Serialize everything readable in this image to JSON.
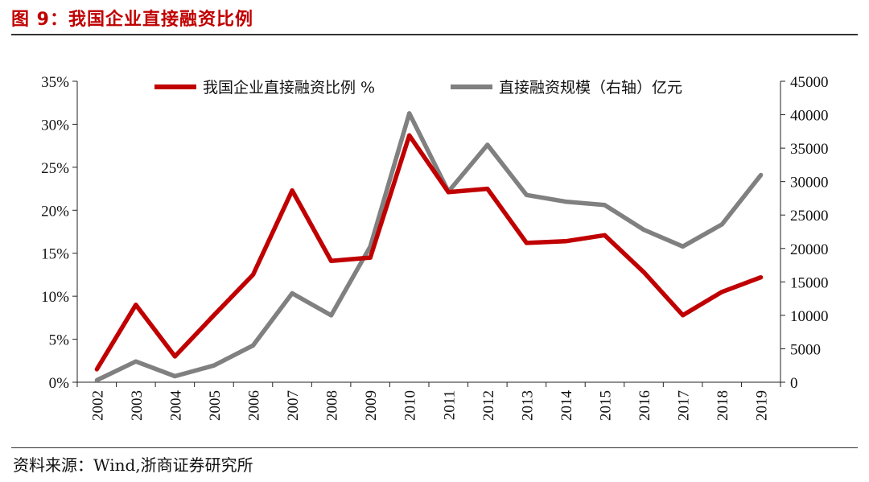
{
  "figure": {
    "title": "图 9：我国企业直接融资比例",
    "source": "资料来源：Wind,浙商证券研究所"
  },
  "chart_data": {
    "type": "line",
    "title": "图 9：我国企业直接融资比例",
    "categories": [
      "2002",
      "2003",
      "2004",
      "2005",
      "2006",
      "2007",
      "2008",
      "2009",
      "2010",
      "2011",
      "2012",
      "2013",
      "2014",
      "2015",
      "2016",
      "2017",
      "2018",
      "2019"
    ],
    "series": [
      {
        "name": "我国企业直接融资比例 %",
        "axis": "left",
        "color": "#c00000",
        "values": [
          1.5,
          9.0,
          3.0,
          7.8,
          12.5,
          22.3,
          14.1,
          14.5,
          28.7,
          22.1,
          22.5,
          16.2,
          16.4,
          17.1,
          12.8,
          7.8,
          10.5,
          12.2
        ]
      },
      {
        "name": "直接融资规模（右轴）亿元",
        "axis": "right",
        "color": "#808080",
        "values": [
          300,
          3100,
          900,
          2500,
          5500,
          13300,
          10000,
          20300,
          40200,
          28500,
          35500,
          28000,
          27000,
          26500,
          22800,
          20300,
          23600,
          31000
        ]
      }
    ],
    "y_left": {
      "min": 0,
      "max": 35,
      "ticks": [
        "0%",
        "5%",
        "10%",
        "15%",
        "20%",
        "25%",
        "30%",
        "35%"
      ]
    },
    "y_right": {
      "min": 0,
      "max": 45000,
      "ticks": [
        "0",
        "5000",
        "10000",
        "15000",
        "20000",
        "25000",
        "30000",
        "35000",
        "40000",
        "45000"
      ]
    },
    "legend_position": "top"
  }
}
